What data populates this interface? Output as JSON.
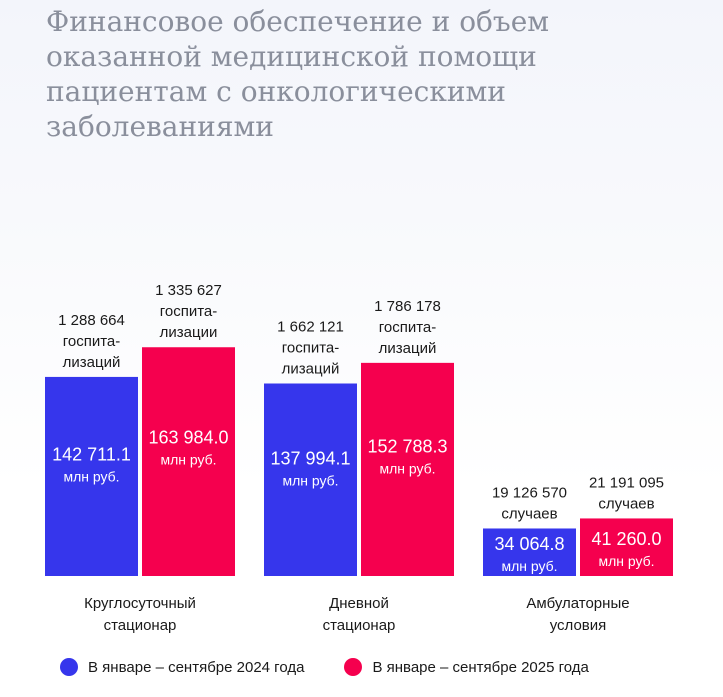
{
  "title": "Финансовое обеспечение и объем оказанной медицинской помощи пациентам с онкологическими заболеваниями",
  "colors": {
    "series2024": "#3636ec",
    "series2025": "#f5004e"
  },
  "chart_data": {
    "type": "bar",
    "title": "Финансовое обеспечение и объем оказанной медицинской помощи пациентам с онкологическими заболеваниями",
    "categories": [
      [
        "Круглосуточный",
        "стационар"
      ],
      [
        "Дневной",
        "стационар"
      ],
      [
        "Амбулаторные",
        "условия"
      ]
    ],
    "value_unit": "млн руб.",
    "ylim": [
      0,
      200000
    ],
    "series": [
      {
        "name": "В январе – сентябре 2024 года",
        "values": [
          142711.1,
          137994.1,
          34064.8
        ],
        "value_labels": [
          "142 711.1",
          "137 994.1",
          "34 064.8"
        ],
        "volume_labels": [
          [
            "1 288 664",
            "госпита-",
            "лизаций"
          ],
          [
            "1 662 121",
            "госпита-",
            "лизаций"
          ],
          [
            "19 126 570",
            "случаев"
          ]
        ]
      },
      {
        "name": "В январе – сентябре 2025 года",
        "values": [
          163984.0,
          152788.3,
          41260.0
        ],
        "value_labels": [
          "163 984.0",
          "152 788.3",
          "41 260.0"
        ],
        "volume_labels": [
          [
            "1 335 627",
            "госпита-",
            "лизации"
          ],
          [
            "1 786 178",
            "госпита-",
            "лизаций"
          ],
          [
            "21 191 095",
            "случаев"
          ]
        ]
      }
    ]
  }
}
